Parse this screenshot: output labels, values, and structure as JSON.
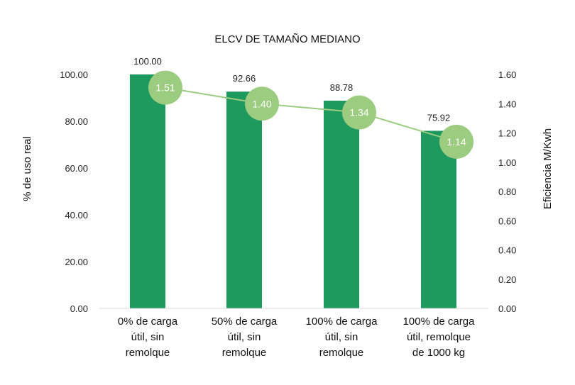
{
  "chart_data": {
    "type": "bar",
    "title": "ELCV DE TAMAÑO MEDIANO",
    "categories": [
      [
        "0% de carga",
        "útil, sin",
        "remolque"
      ],
      [
        "50% de carga",
        "útil, sin",
        "remolque"
      ],
      [
        "100% de carga",
        "útil, sin",
        "remolque"
      ],
      [
        "100% de carga",
        "útil, remolque",
        "de 1000 kg"
      ]
    ],
    "series": [
      {
        "name": "% de uso real",
        "type": "bar",
        "axis": "left",
        "values": [
          100.0,
          92.66,
          88.78,
          75.92
        ],
        "labels": [
          "100.00",
          "92.66",
          "88.78",
          "75.92"
        ]
      },
      {
        "name": "Eficiencia M/Kwh",
        "type": "line",
        "axis": "right",
        "values": [
          1.51,
          1.4,
          1.34,
          1.14
        ],
        "labels": [
          "1.51",
          "1.40",
          "1.34",
          "1.14"
        ]
      }
    ],
    "ylabel": "% de uso real",
    "y2label": "Eficiencia M/Kwh",
    "ylim": [
      0,
      100
    ],
    "y2lim": [
      0,
      1.6
    ],
    "yticks": [
      "0.00",
      "20.00",
      "40.00",
      "60.00",
      "80.00",
      "100.00"
    ],
    "y2ticks": [
      "0.00",
      "0.20",
      "0.40",
      "0.60",
      "0.80",
      "1.00",
      "1.20",
      "1.40",
      "1.60"
    ],
    "grid": false,
    "colors": {
      "bar": "#1e9a5e",
      "line": "#9ccc7f",
      "marker": "#9ccc7f"
    }
  }
}
